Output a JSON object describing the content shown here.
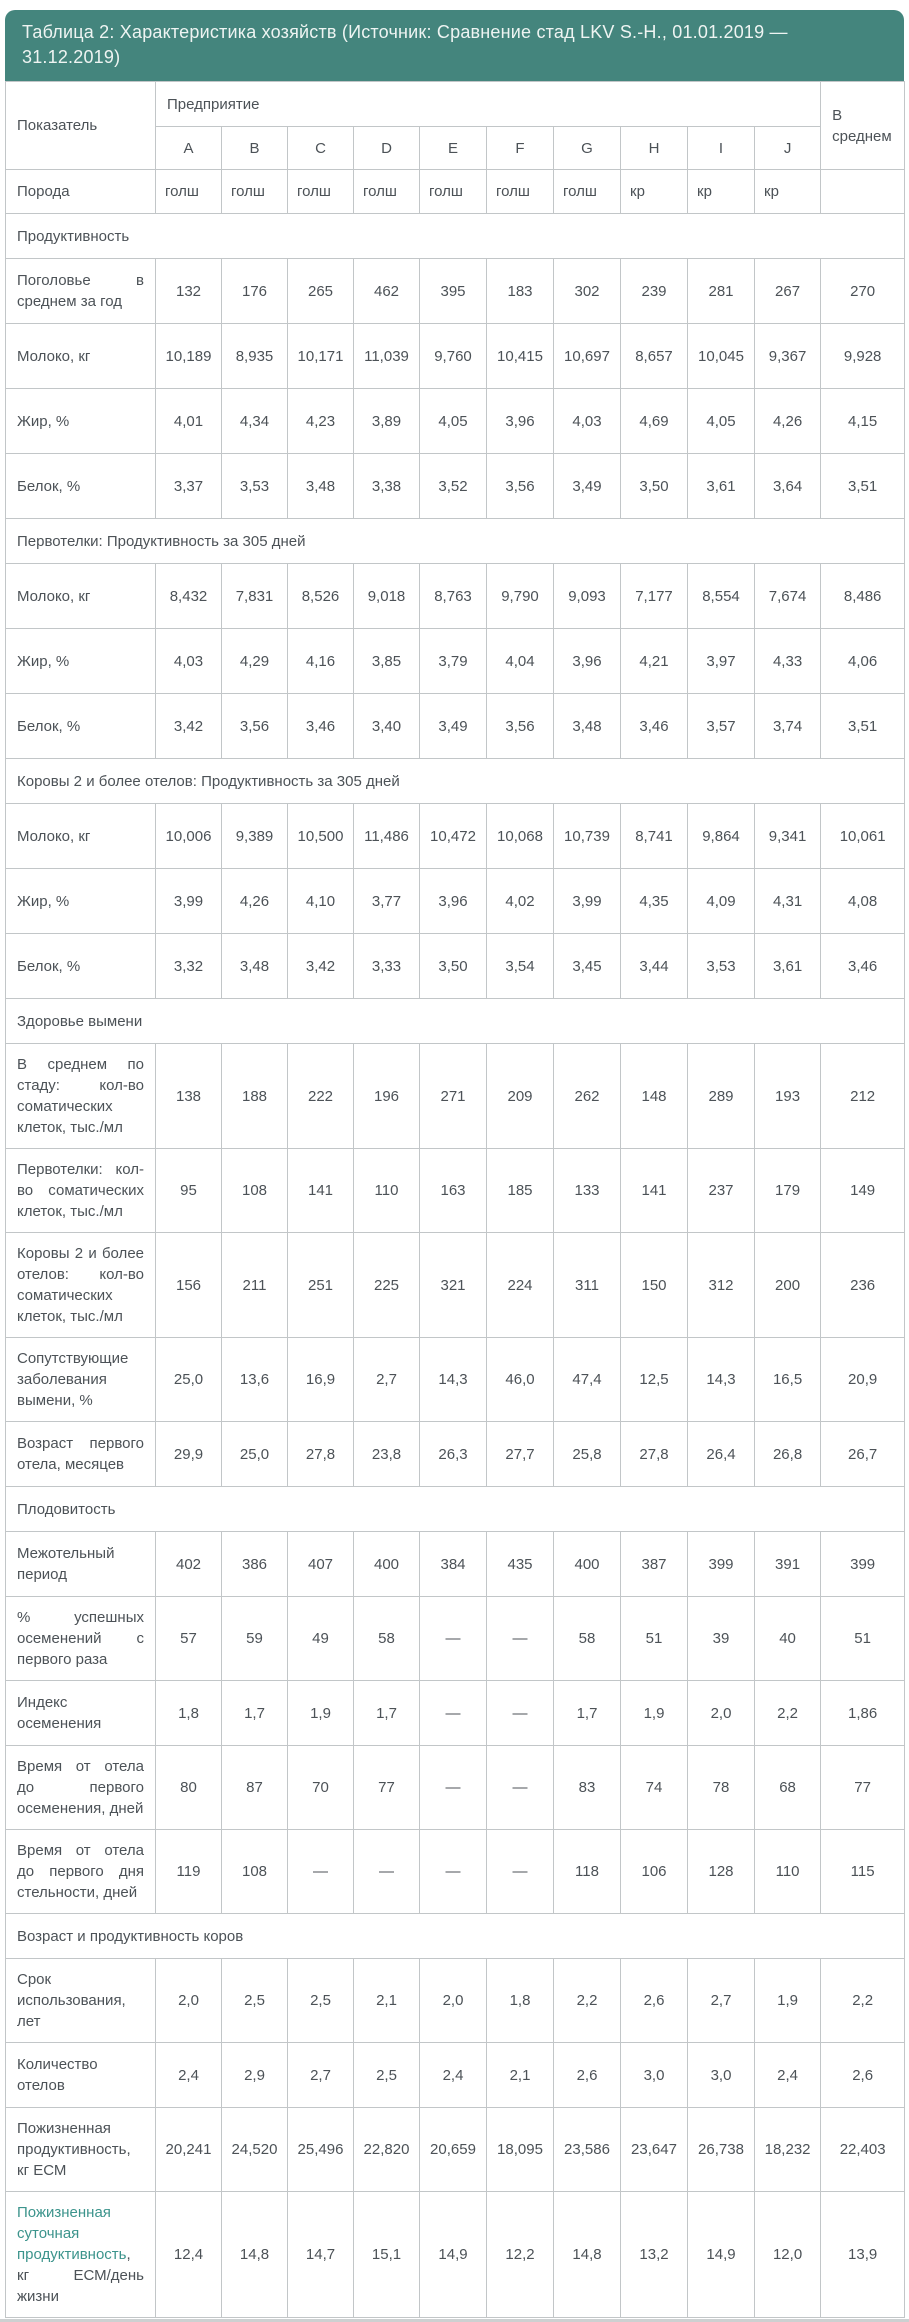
{
  "colors": {
    "banner_background": "#44857d",
    "banner_text": "#eef4f2",
    "table_border": "#c2c6c8",
    "body_text": "#4c5257",
    "highlight_text": "#3c948c"
  },
  "table": {
    "title": "Таблица 2: Характеристика хозяйств (Источник: Сравнение стад LKV S.-H., 01.01.2019 — 31.12.2019)",
    "header": {
      "indicator": "Показатель",
      "enterprise_group": "Предприятие",
      "enterprises": [
        "A",
        "B",
        "C",
        "D",
        "E",
        "F",
        "G",
        "H",
        "I",
        "J"
      ],
      "average": "В среднем"
    },
    "rows": [
      {
        "type": "breed",
        "label": "Порода",
        "cells": [
          "голш",
          "голш",
          "голш",
          "голш",
          "голш",
          "голш",
          "голш",
          "кр",
          "кр",
          "кр",
          ""
        ]
      },
      {
        "type": "section",
        "label": "Продуктивность"
      },
      {
        "type": "data",
        "label": "Поголовье в среднем за год",
        "cells": [
          "132",
          "176",
          "265",
          "462",
          "395",
          "183",
          "302",
          "239",
          "281",
          "267",
          "270"
        ]
      },
      {
        "type": "data",
        "label": "Молоко, кг",
        "cells": [
          "10,189",
          "8,935",
          "10,171",
          "11,039",
          "9,760",
          "10,415",
          "10,697",
          "8,657",
          "10,045",
          "9,367",
          "9,928"
        ]
      },
      {
        "type": "data",
        "label": "Жир, %",
        "cells": [
          "4,01",
          "4,34",
          "4,23",
          "3,89",
          "4,05",
          "3,96",
          "4,03",
          "4,69",
          "4,05",
          "4,26",
          "4,15"
        ]
      },
      {
        "type": "data",
        "label": "Белок, %",
        "cells": [
          "3,37",
          "3,53",
          "3,48",
          "3,38",
          "3,52",
          "3,56",
          "3,49",
          "3,50",
          "3,61",
          "3,64",
          "3,51"
        ]
      },
      {
        "type": "section",
        "label": "Первотелки: Продуктивность за 305 дней"
      },
      {
        "type": "data",
        "label": "Молоко, кг",
        "cells": [
          "8,432",
          "7,831",
          "8,526",
          "9,018",
          "8,763",
          "9,790",
          "9,093",
          "7,177",
          "8,554",
          "7,674",
          "8,486"
        ]
      },
      {
        "type": "data",
        "label": "Жир, %",
        "cells": [
          "4,03",
          "4,29",
          "4,16",
          "3,85",
          "3,79",
          "4,04",
          "3,96",
          "4,21",
          "3,97",
          "4,33",
          "4,06"
        ]
      },
      {
        "type": "data",
        "label": "Белок, %",
        "cells": [
          "3,42",
          "3,56",
          "3,46",
          "3,40",
          "3,49",
          "3,56",
          "3,48",
          "3,46",
          "3,57",
          "3,74",
          "3,51"
        ]
      },
      {
        "type": "section",
        "label": "Коровы 2 и более отелов: Продуктивность за 305 дней"
      },
      {
        "type": "data",
        "label": "Молоко, кг",
        "cells": [
          "10,006",
          "9,389",
          "10,500",
          "11,486",
          "10,472",
          "10,068",
          "10,739",
          "8,741",
          "9,864",
          "9,341",
          "10,061"
        ]
      },
      {
        "type": "data",
        "label": "Жир, %",
        "cells": [
          "3,99",
          "4,26",
          "4,10",
          "3,77",
          "3,96",
          "4,02",
          "3,99",
          "4,35",
          "4,09",
          "4,31",
          "4,08"
        ]
      },
      {
        "type": "data",
        "label": "Белок, %",
        "cells": [
          "3,32",
          "3,48",
          "3,42",
          "3,33",
          "3,50",
          "3,54",
          "3,45",
          "3,44",
          "3,53",
          "3,61",
          "3,46"
        ]
      },
      {
        "type": "section",
        "label": "Здоровье вымени"
      },
      {
        "type": "data",
        "label": "В среднем по стаду: кол-во соматических клеток, тыс./мл",
        "cells": [
          "138",
          "188",
          "222",
          "196",
          "271",
          "209",
          "262",
          "148",
          "289",
          "193",
          "212"
        ]
      },
      {
        "type": "data",
        "label": "Первотелки: кол-во соматических клеток, тыс./мл",
        "cells": [
          "95",
          "108",
          "141",
          "110",
          "163",
          "185",
          "133",
          "141",
          "237",
          "179",
          "149"
        ]
      },
      {
        "type": "data",
        "label": "Коровы 2 и более отелов: кол-во соматических клеток, тыс./мл",
        "cells": [
          "156",
          "211",
          "251",
          "225",
          "321",
          "224",
          "311",
          "150",
          "312",
          "200",
          "236"
        ]
      },
      {
        "type": "data",
        "label": "Сопутствующие заболевания вымени, %",
        "cells": [
          "25,0",
          "13,6",
          "16,9",
          "2,7",
          "14,3",
          "46,0",
          "47,4",
          "12,5",
          "14,3",
          "16,5",
          "20,9"
        ]
      },
      {
        "type": "data",
        "label": "Возраст первого отела, месяцев",
        "cells": [
          "29,9",
          "25,0",
          "27,8",
          "23,8",
          "26,3",
          "27,7",
          "25,8",
          "27,8",
          "26,4",
          "26,8",
          "26,7"
        ]
      },
      {
        "type": "section",
        "label": "Плодовитость"
      },
      {
        "type": "data",
        "label": "Межотельный период",
        "cells": [
          "402",
          "386",
          "407",
          "400",
          "384",
          "435",
          "400",
          "387",
          "399",
          "391",
          "399"
        ]
      },
      {
        "type": "data",
        "label": "% успешных осеменений с первого раза",
        "cells": [
          "57",
          "59",
          "49",
          "58",
          "—",
          "—",
          "58",
          "51",
          "39",
          "40",
          "51"
        ]
      },
      {
        "type": "data",
        "label": "Индекс осеменения",
        "cells": [
          "1,8",
          "1,7",
          "1,9",
          "1,7",
          "—",
          "—",
          "1,7",
          "1,9",
          "2,0",
          "2,2",
          "1,86"
        ]
      },
      {
        "type": "data",
        "label": "Время от отела до первого осеменения, дней",
        "cells": [
          "80",
          "87",
          "70",
          "77",
          "—",
          "—",
          "83",
          "74",
          "78",
          "68",
          "77"
        ]
      },
      {
        "type": "data",
        "label": "Время от отела до первого дня стельности, дней",
        "cells": [
          "119",
          "108",
          "—",
          "—",
          "—",
          "—",
          "118",
          "106",
          "128",
          "110",
          "115"
        ]
      },
      {
        "type": "section",
        "label": "Возраст и продуктивность коров"
      },
      {
        "type": "data",
        "label": "Срок использования, лет",
        "cells": [
          "2,0",
          "2,5",
          "2,5",
          "2,1",
          "2,0",
          "1,8",
          "2,2",
          "2,6",
          "2,7",
          "1,9",
          "2,2"
        ]
      },
      {
        "type": "data",
        "label": "Количество отелов",
        "cells": [
          "2,4",
          "2,9",
          "2,7",
          "2,5",
          "2,4",
          "2,1",
          "2,6",
          "3,0",
          "3,0",
          "2,4",
          "2,6"
        ]
      },
      {
        "type": "data",
        "label": "Пожизненная продуктивность, кг ЕСМ",
        "cells": [
          "20,241",
          "24,520",
          "25,496",
          "22,820",
          "20,659",
          "18,095",
          "23,586",
          "23,647",
          "26,738",
          "18,232",
          "22,403"
        ]
      },
      {
        "type": "data",
        "label_highlight": "Пожизненная суточная продуктивность",
        "label": ", кг ЕСМ/день жизни",
        "cells": [
          "12,4",
          "14,8",
          "14,7",
          "15,1",
          "14,9",
          "12,2",
          "14,8",
          "13,2",
          "14,9",
          "12,0",
          "13,9"
        ]
      }
    ]
  }
}
